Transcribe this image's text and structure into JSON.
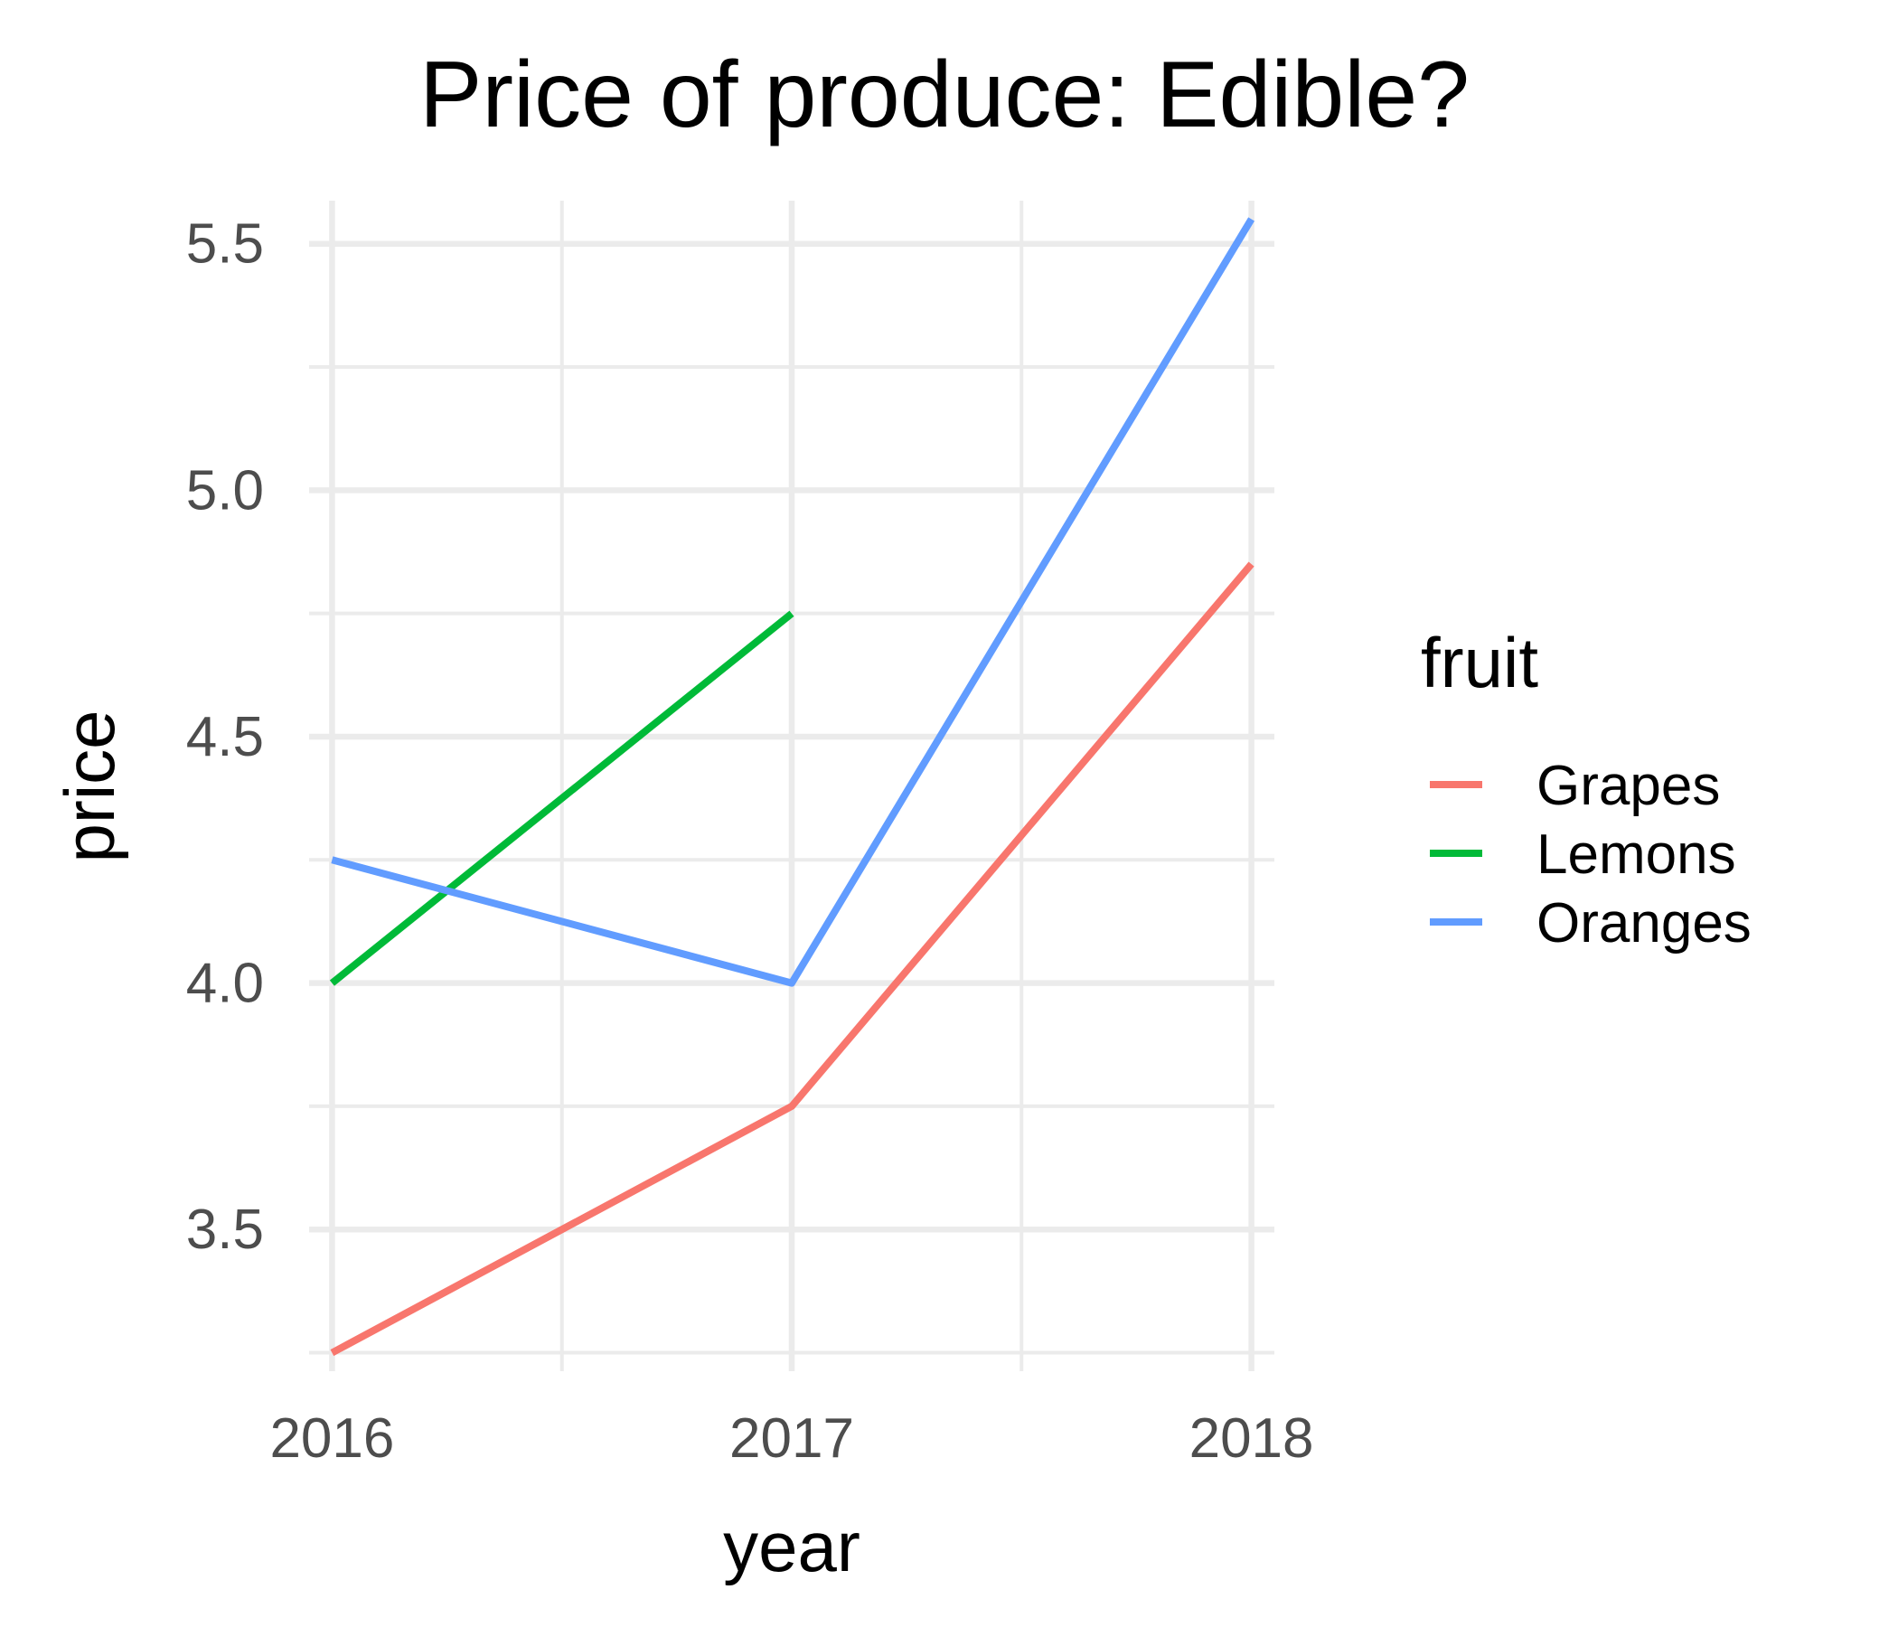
{
  "chart_data": {
    "type": "line",
    "title": "Price of produce: Edible?",
    "xlabel": "year",
    "ylabel": "price",
    "x": [
      2016,
      2017,
      2018
    ],
    "xlim": [
      2015.95,
      2018.05
    ],
    "ylim": [
      3.2125,
      5.5875
    ],
    "yticks": [
      3.5,
      4.0,
      4.5,
      5.0,
      5.5
    ],
    "ytick_labels": [
      "3.5",
      "4.0",
      "4.5",
      "5.0",
      "5.5"
    ],
    "xtick_labels": [
      "2016",
      "2017",
      "2018"
    ],
    "grid": true,
    "legend": {
      "title": "fruit",
      "position": "right"
    },
    "series": [
      {
        "name": "Grapes",
        "color": "#F8766D",
        "values": [
          3.25,
          3.75,
          4.85
        ]
      },
      {
        "name": "Lemons",
        "color": "#00BA38",
        "values": [
          4.0,
          4.75,
          null
        ]
      },
      {
        "name": "Oranges",
        "color": "#619CFF",
        "values": [
          4.25,
          4.0,
          5.55
        ]
      }
    ]
  }
}
